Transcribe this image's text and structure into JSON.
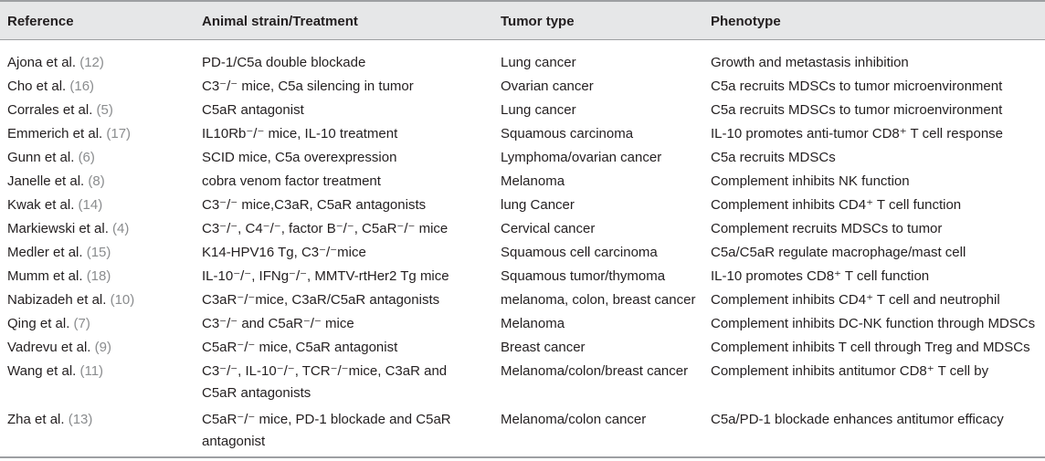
{
  "headers": [
    "Reference",
    "Animal strain/Treatment",
    "Tumor type",
    "Phenotype"
  ],
  "rows": [
    {
      "ref": "Ajona et al.",
      "cite": "(12)",
      "treatment": [
        "PD-1/C5a double blockade"
      ],
      "tumor": "Lung cancer",
      "phenotype": "Growth and metastasis inhibition"
    },
    {
      "ref": "Cho et al.",
      "cite": "(16)",
      "treatment": [
        "C3⁻/⁻ mice, C5a silencing in tumor"
      ],
      "tumor": "Ovarian cancer",
      "phenotype": "C5a recruits MDSCs to tumor microenvironment"
    },
    {
      "ref": "Corrales et al.",
      "cite": "(5)",
      "treatment": [
        "C5aR antagonist"
      ],
      "tumor": "Lung cancer",
      "phenotype": "C5a recruits MDSCs to tumor microenvironment"
    },
    {
      "ref": "Emmerich et al.",
      "cite": "(17)",
      "treatment": [
        "IL10Rb⁻/⁻ mice, IL-10 treatment"
      ],
      "tumor": "Squamous carcinoma",
      "phenotype": "IL-10 promotes anti-tumor CD8⁺ T cell response"
    },
    {
      "ref": "Gunn et al.",
      "cite": "(6)",
      "treatment": [
        "SCID mice, C5a overexpression"
      ],
      "tumor": "Lymphoma/ovarian cancer",
      "phenotype": "C5a recruits MDSCs"
    },
    {
      "ref": "Janelle et al.",
      "cite": "(8)",
      "treatment": [
        "cobra venom factor treatment"
      ],
      "tumor": "Melanoma",
      "phenotype": "Complement inhibits NK function"
    },
    {
      "ref": "Kwak et al.",
      "cite": "(14)",
      "treatment": [
        "C3⁻/⁻ mice,C3aR, C5aR antagonists"
      ],
      "tumor": "lung Cancer",
      "phenotype": "Complement inhibits CD4⁺ T cell function"
    },
    {
      "ref": "Markiewski et al.",
      "cite": "(4)",
      "treatment": [
        "C3⁻/⁻, C4⁻/⁻, factor B⁻/⁻, C5aR⁻/⁻ mice"
      ],
      "tumor": "Cervical cancer",
      "phenotype": "Complement recruits MDSCs to tumor"
    },
    {
      "ref": "Medler et al.",
      "cite": "(15)",
      "treatment": [
        "K14-HPV16 Tg, C3⁻/⁻mice"
      ],
      "tumor": "Squamous cell carcinoma",
      "phenotype": "C5a/C5aR regulate macrophage/mast cell"
    },
    {
      "ref": "Mumm et al.",
      "cite": "(18)",
      "treatment": [
        "IL-10⁻/⁻, IFNg⁻/⁻, MMTV-rtHer2 Tg mice"
      ],
      "tumor": "Squamous tumor/thymoma",
      "phenotype": "IL-10 promotes CD8⁺ T cell function"
    },
    {
      "ref": "Nabizadeh et al.",
      "cite": "(10)",
      "treatment": [
        "C3aR⁻/⁻mice, C3aR/C5aR antagonists"
      ],
      "tumor": "melanoma, colon, breast cancer",
      "phenotype": "Complement inhibits CD4⁺ T cell and neutrophil"
    },
    {
      "ref": "Qing et al.",
      "cite": "(7)",
      "treatment": [
        "C3⁻/⁻ and C5aR⁻/⁻ mice"
      ],
      "tumor": "Melanoma",
      "phenotype": "Complement inhibits DC-NK function through MDSCs"
    },
    {
      "ref": "Vadrevu et al.",
      "cite": "(9)",
      "treatment": [
        "C5aR⁻/⁻ mice, C5aR antagonist"
      ],
      "tumor": "Breast cancer",
      "phenotype": "Complement inhibits T cell through Treg and MDSCs"
    },
    {
      "ref": "Wang et al.",
      "cite": "(11)",
      "treatment": [
        "C3⁻/⁻, IL-10⁻/⁻, TCR⁻/⁻mice, C3aR and",
        "C5aR antagonists"
      ],
      "tumor": "Melanoma/colon/breast cancer",
      "phenotype": "Complement inhibits antitumor CD8⁺ T cell by"
    },
    {
      "ref": "Zha et al.",
      "cite": "(13)",
      "treatment": [
        "C5aR⁻/⁻ mice, PD-1 blockade and C5aR",
        "antagonist"
      ],
      "tumor": "Melanoma/colon cancer",
      "phenotype": "C5a/PD-1 blockade enhances antitumor efficacy"
    }
  ]
}
